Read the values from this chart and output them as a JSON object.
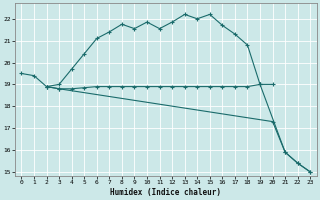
{
  "xlabel": "Humidex (Indice chaleur)",
  "bg_color": "#cce8e8",
  "line_color": "#1a6b6b",
  "grid_color": "#ffffff",
  "xlim": [
    -0.5,
    23.5
  ],
  "ylim": [
    14.8,
    22.7
  ],
  "yticks": [
    15,
    16,
    17,
    18,
    19,
    20,
    21,
    22
  ],
  "xticks": [
    0,
    1,
    2,
    3,
    4,
    5,
    6,
    7,
    8,
    9,
    10,
    11,
    12,
    13,
    14,
    15,
    16,
    17,
    18,
    19,
    20,
    21,
    22,
    23
  ],
  "line1_x": [
    0,
    1,
    2,
    3,
    4,
    5,
    6,
    7,
    8,
    9,
    10,
    11,
    12,
    13,
    14,
    15,
    16,
    17,
    18,
    19,
    20
  ],
  "line1_y": [
    19.5,
    19.4,
    18.9,
    19.0,
    19.7,
    20.4,
    21.1,
    21.4,
    21.75,
    21.55,
    21.85,
    21.55,
    21.85,
    22.2,
    22.0,
    22.2,
    21.7,
    21.3,
    20.8,
    19.0,
    19.0
  ],
  "line2_x": [
    2,
    3,
    19,
    20,
    21,
    22,
    23
  ],
  "line2_y": [
    18.9,
    18.8,
    19.0,
    19.0,
    15.9,
    15.4,
    15.0
  ],
  "line2_mid_x": [
    2,
    3,
    4,
    5,
    6,
    7,
    8,
    9,
    10,
    11,
    12,
    13,
    14,
    15,
    16,
    17,
    18,
    19
  ],
  "line2_mid_y": [
    18.9,
    18.8,
    18.8,
    18.85,
    18.9,
    18.9,
    18.9,
    18.9,
    18.9,
    18.9,
    18.9,
    18.9,
    18.9,
    18.9,
    18.9,
    18.9,
    18.9,
    19.0
  ],
  "line3_x": [
    2,
    3,
    20,
    21,
    22,
    23
  ],
  "line3_y": [
    18.9,
    18.8,
    17.3,
    15.9,
    15.4,
    15.0
  ]
}
